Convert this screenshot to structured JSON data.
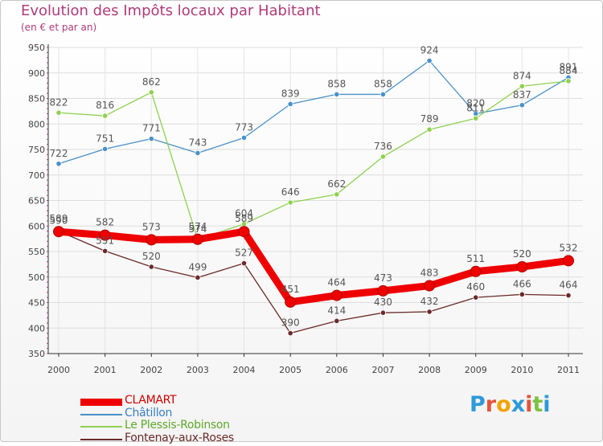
{
  "title": "Evolution des Impôts locaux par Habitant",
  "subtitle": "(en € et par an)",
  "logo": {
    "text": "Proxiti",
    "letter_colors": [
      "#2f9ad8",
      "#e5533c",
      "#f0a500",
      "#2f9ad8",
      "#e5533c",
      "#7cc242",
      "#2f9ad8"
    ]
  },
  "chart_data": {
    "type": "line",
    "title": "Evolution des Impôts locaux par Habitant",
    "subtitle": "(en € et par an)",
    "x": [
      "2000",
      "2001",
      "2002",
      "2003",
      "2004",
      "2005",
      "2006",
      "2007",
      "2008",
      "2009",
      "2010",
      "2011"
    ],
    "ylim": [
      350,
      950
    ],
    "yticks": [
      350,
      400,
      450,
      500,
      550,
      600,
      650,
      700,
      750,
      800,
      850,
      900,
      950
    ],
    "grid": true,
    "legend_position": "bottom-left",
    "series": [
      {
        "name": "Châtillon",
        "color": "#4a90c8",
        "values": [
          722,
          751,
          771,
          743,
          773,
          839,
          858,
          858,
          924,
          820,
          837,
          891
        ],
        "emphasis": false
      },
      {
        "name": "Le Plessis-Robinson",
        "color": "#8fd14f",
        "values": [
          822,
          816,
          862,
          574,
          604,
          646,
          662,
          736,
          789,
          811,
          874,
          884
        ],
        "emphasis": false
      },
      {
        "name": "Fontenay-aux-Roses",
        "color": "#6b2a2a",
        "values": [
          590,
          551,
          520,
          499,
          527,
          390,
          414,
          430,
          432,
          460,
          466,
          464
        ],
        "emphasis": false
      },
      {
        "name": "CLAMART",
        "color": "#ee0000",
        "values": [
          589,
          582,
          573,
          574,
          589,
          451,
          464,
          473,
          483,
          511,
          520,
          532
        ],
        "emphasis": true
      }
    ]
  }
}
